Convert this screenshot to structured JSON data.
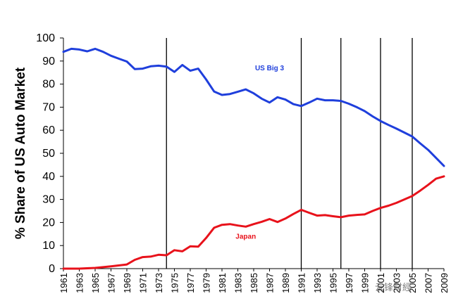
{
  "chart_data": {
    "type": "line",
    "title": "",
    "ylabel": "% Share of US Auto Market",
    "xlabel": "",
    "ylim": [
      0,
      100
    ],
    "xlim": [
      1961,
      2009
    ],
    "yticks": [
      0,
      10,
      20,
      30,
      40,
      50,
      60,
      70,
      80,
      90,
      100
    ],
    "xticks": [
      "1961",
      "1963",
      "1965",
      "1967",
      "1969",
      "1971",
      "1973",
      "1975",
      "1977",
      "1979",
      "1981",
      "1983",
      "1985",
      "1987",
      "1989",
      "1991",
      "1993",
      "1995",
      "1997",
      "1999",
      "2001",
      "2003",
      "2005",
      "2007",
      "2009"
    ],
    "vlines": [
      1974,
      1991,
      1996,
      2001,
      2005
    ],
    "series": [
      {
        "name": "US Big 3",
        "color": "#1f3fdc",
        "label_at": [
          1987,
          86
        ],
        "points": [
          [
            1961,
            94
          ],
          [
            1962,
            95.3
          ],
          [
            1963,
            95
          ],
          [
            1964,
            94.2
          ],
          [
            1965,
            95.3
          ],
          [
            1966,
            94
          ],
          [
            1967,
            92.3
          ],
          [
            1968,
            91
          ],
          [
            1969,
            89.8
          ],
          [
            1970,
            86.5
          ],
          [
            1971,
            86.7
          ],
          [
            1972,
            87.7
          ],
          [
            1973,
            88
          ],
          [
            1974,
            87.6
          ],
          [
            1975,
            85.3
          ],
          [
            1976,
            88.3
          ],
          [
            1977,
            85.8
          ],
          [
            1978,
            86.7
          ],
          [
            1979,
            82
          ],
          [
            1980,
            76.8
          ],
          [
            1981,
            75.3
          ],
          [
            1982,
            75.7
          ],
          [
            1983,
            76.7
          ],
          [
            1984,
            77.7
          ],
          [
            1985,
            76
          ],
          [
            1986,
            73.7
          ],
          [
            1987,
            72
          ],
          [
            1988,
            74.3
          ],
          [
            1989,
            73.3
          ],
          [
            1990,
            71.3
          ],
          [
            1991,
            70.5
          ],
          [
            1992,
            72
          ],
          [
            1993,
            73.7
          ],
          [
            1994,
            73
          ],
          [
            1995,
            73
          ],
          [
            1996,
            72.7
          ],
          [
            1997,
            71.5
          ],
          [
            1998,
            70
          ],
          [
            1999,
            68.3
          ],
          [
            2000,
            66
          ],
          [
            2001,
            64
          ],
          [
            2002,
            62.3
          ],
          [
            2003,
            60.7
          ],
          [
            2004,
            59
          ],
          [
            2005,
            57.3
          ],
          [
            2006,
            54.3
          ],
          [
            2007,
            51.5
          ],
          [
            2008,
            48
          ],
          [
            2009,
            44.5
          ]
        ]
      },
      {
        "name": "Japan",
        "color": "#e8121b",
        "label_at": [
          1984,
          13
        ],
        "points": [
          [
            1961,
            0
          ],
          [
            1963,
            0
          ],
          [
            1965,
            0.3
          ],
          [
            1967,
            1
          ],
          [
            1969,
            1.8
          ],
          [
            1970,
            3.8
          ],
          [
            1971,
            5
          ],
          [
            1972,
            5.2
          ],
          [
            1973,
            6
          ],
          [
            1974,
            5.8
          ],
          [
            1975,
            8
          ],
          [
            1976,
            7.5
          ],
          [
            1977,
            9.7
          ],
          [
            1978,
            9.5
          ],
          [
            1979,
            13.3
          ],
          [
            1980,
            17.7
          ],
          [
            1981,
            19
          ],
          [
            1982,
            19.3
          ],
          [
            1983,
            18.7
          ],
          [
            1984,
            18.2
          ],
          [
            1985,
            19.3
          ],
          [
            1986,
            20.3
          ],
          [
            1987,
            21.5
          ],
          [
            1988,
            20.2
          ],
          [
            1989,
            21.7
          ],
          [
            1990,
            23.7
          ],
          [
            1991,
            25.5
          ],
          [
            1992,
            24.2
          ],
          [
            1993,
            23
          ],
          [
            1994,
            23.2
          ],
          [
            1995,
            22.7
          ],
          [
            1996,
            22.3
          ],
          [
            1997,
            23
          ],
          [
            1998,
            23.3
          ],
          [
            1999,
            23.5
          ],
          [
            2000,
            25
          ],
          [
            2001,
            26.3
          ],
          [
            2002,
            27.3
          ],
          [
            2003,
            28.5
          ],
          [
            2004,
            30
          ],
          [
            2005,
            31.5
          ],
          [
            2006,
            33.8
          ],
          [
            2007,
            36.3
          ],
          [
            2008,
            39
          ],
          [
            2009,
            40
          ]
        ]
      }
    ]
  },
  "watermark": "云锋财經"
}
